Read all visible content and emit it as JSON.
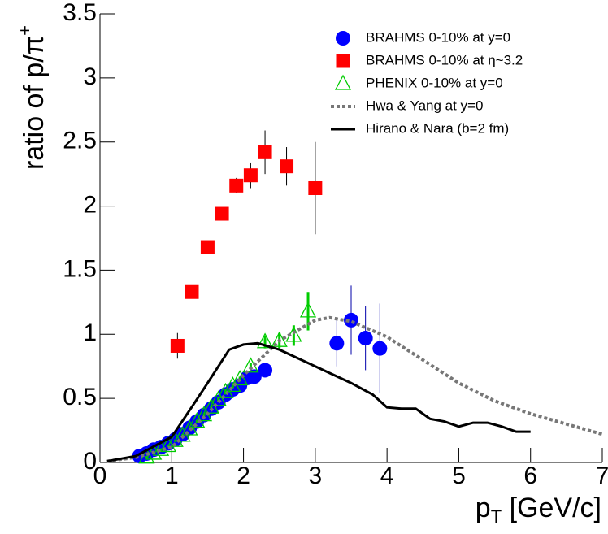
{
  "chart_data": {
    "type": "scatter",
    "ylabel": {
      "text": "ratio of p/π",
      "sup": "+"
    },
    "xlabel": {
      "text": "p",
      "sub": "T",
      "rest": " [GeV/c]"
    },
    "xlim": [
      0,
      7
    ],
    "ylim": [
      0,
      3.5
    ],
    "xticks": [
      0,
      1,
      2,
      3,
      4,
      5,
      6,
      7
    ],
    "yticks": [
      0,
      0.5,
      1,
      1.5,
      2,
      2.5,
      3,
      3.5
    ],
    "series": [
      {
        "name": "BRAHMS 0-10% at y=0",
        "kind": "marker",
        "marker": "circle",
        "color": "#0000ff",
        "errcolor": "#0000aa",
        "x": [
          0.55,
          0.65,
          0.75,
          0.85,
          0.95,
          1.05,
          1.15,
          1.25,
          1.35,
          1.45,
          1.55,
          1.65,
          1.75,
          1.85,
          1.95,
          2.05,
          2.15,
          2.3,
          3.3,
          3.5,
          3.7,
          3.9
        ],
        "values": [
          0.05,
          0.07,
          0.1,
          0.12,
          0.15,
          0.18,
          0.22,
          0.27,
          0.32,
          0.37,
          0.42,
          0.47,
          0.53,
          0.57,
          0.6,
          0.66,
          0.67,
          0.72,
          0.93,
          1.11,
          0.97,
          0.89
        ],
        "errors": [
          0.01,
          0.01,
          0.01,
          0.01,
          0.01,
          0.01,
          0.01,
          0.01,
          0.02,
          0.02,
          0.02,
          0.02,
          0.02,
          0.02,
          0.03,
          0.03,
          0.03,
          0.04,
          0.18,
          0.27,
          0.25,
          0.35
        ]
      },
      {
        "name": "BRAHMS 0-10% at η~3.2",
        "kind": "marker",
        "marker": "square",
        "color": "#ff0000",
        "errcolor": "#000000",
        "x": [
          1.08,
          1.28,
          1.5,
          1.7,
          1.9,
          2.1,
          2.3,
          2.6,
          3.0
        ],
        "values": [
          0.91,
          1.33,
          1.68,
          1.94,
          2.16,
          2.24,
          2.42,
          2.31,
          2.14
        ],
        "errors": [
          0.1,
          0.04,
          0.04,
          0.05,
          0.06,
          0.1,
          0.17,
          0.15,
          0.36
        ]
      },
      {
        "name": "PHENIX  0-10% at y=0",
        "kind": "marker",
        "marker": "triangle",
        "color": "#00cc00",
        "errcolor": "#00cc00",
        "x": [
          0.65,
          0.75,
          0.85,
          0.95,
          1.05,
          1.15,
          1.25,
          1.35,
          1.45,
          1.55,
          1.65,
          1.75,
          1.85,
          1.95,
          2.1,
          2.3,
          2.5,
          2.7,
          2.9
        ],
        "values": [
          0.04,
          0.07,
          0.1,
          0.13,
          0.17,
          0.21,
          0.26,
          0.32,
          0.37,
          0.43,
          0.49,
          0.55,
          0.6,
          0.65,
          0.75,
          0.94,
          0.95,
          0.99,
          1.18
        ],
        "errors": [
          0.01,
          0.01,
          0.01,
          0.01,
          0.01,
          0.01,
          0.01,
          0.01,
          0.01,
          0.01,
          0.02,
          0.02,
          0.02,
          0.02,
          0.03,
          0.05,
          0.06,
          0.08,
          0.15
        ]
      },
      {
        "name": "Hwa & Yang at y=0",
        "kind": "line",
        "dash": true,
        "color": "#777777",
        "x": [
          0.1,
          0.5,
          1,
          1.5,
          2,
          2.5,
          3,
          3.2,
          3.5,
          4,
          4.5,
          5,
          5.5,
          6,
          6.5,
          7
        ],
        "values": [
          0.01,
          0.04,
          0.12,
          0.38,
          0.68,
          0.95,
          1.11,
          1.13,
          1.1,
          0.98,
          0.8,
          0.62,
          0.48,
          0.38,
          0.3,
          0.22
        ]
      },
      {
        "name": "Hirano & Nara (b=2 fm)",
        "kind": "line",
        "dash": false,
        "color": "#000000",
        "x": [
          0.1,
          0.5,
          1,
          1.3,
          1.5,
          1.8,
          2,
          2.2,
          2.5,
          3,
          3.5,
          3.8,
          4,
          4.2,
          4.4,
          4.6,
          4.8,
          5,
          5.2,
          5.4,
          5.6,
          5.8,
          6
        ],
        "values": [
          0.01,
          0.05,
          0.2,
          0.45,
          0.62,
          0.88,
          0.92,
          0.93,
          0.88,
          0.75,
          0.62,
          0.53,
          0.43,
          0.42,
          0.42,
          0.34,
          0.32,
          0.28,
          0.31,
          0.31,
          0.28,
          0.24,
          0.24
        ]
      }
    ]
  }
}
